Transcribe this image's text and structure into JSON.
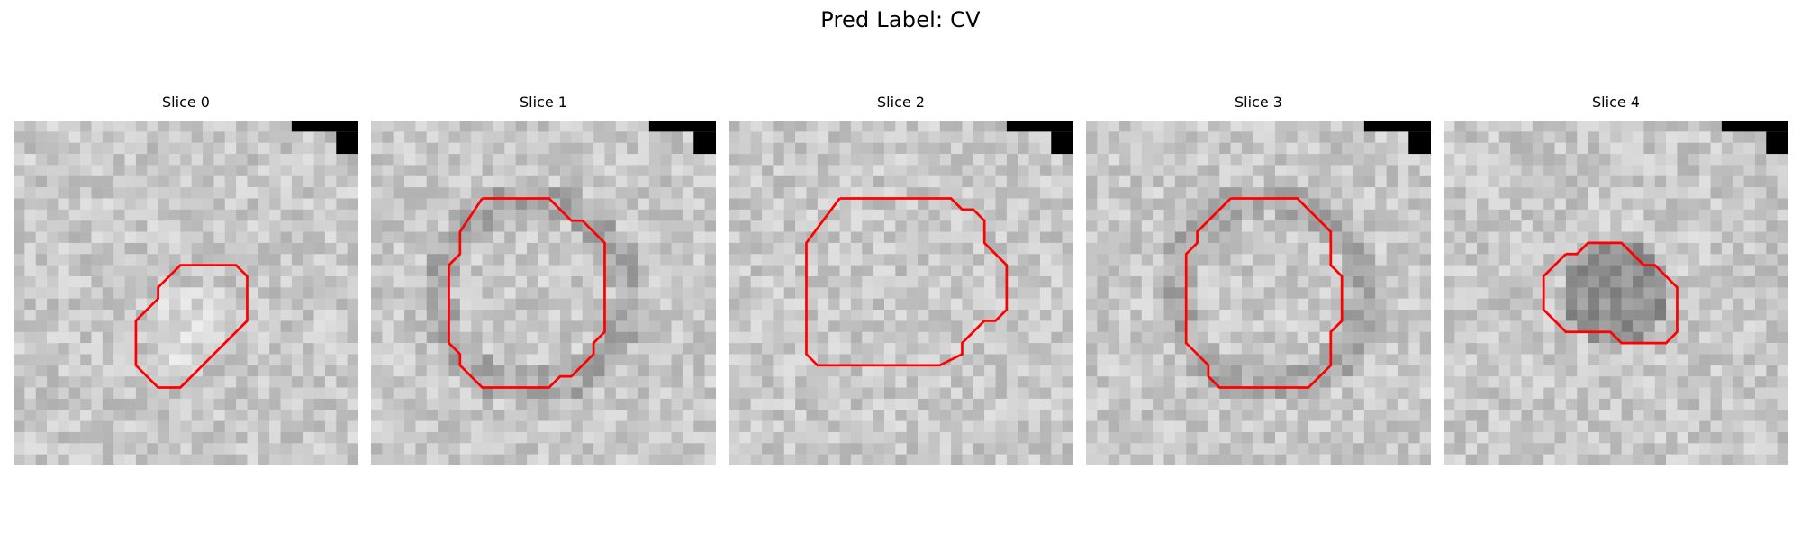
{
  "figure": {
    "title": "Pred Label: CV"
  },
  "panels": [
    {
      "title": "Slice 0"
    },
    {
      "title": "Slice 1"
    },
    {
      "title": "Slice 2"
    },
    {
      "title": "Slice 3"
    },
    {
      "title": "Slice 4"
    }
  ],
  "colors": {
    "contour": "#ff0000",
    "background": "#ffffff",
    "mask": "#000000"
  }
}
